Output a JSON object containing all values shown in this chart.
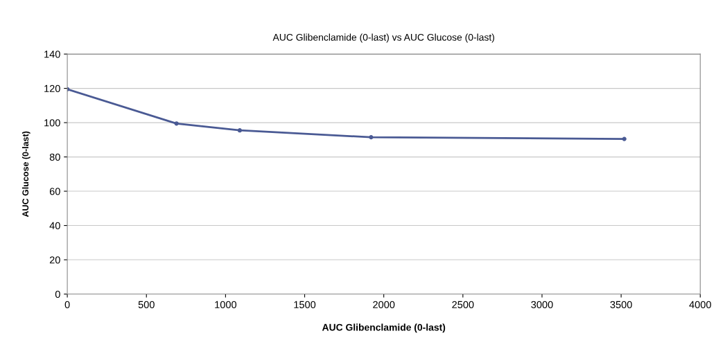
{
  "chart_data": {
    "type": "line",
    "title": "AUC Glibenclamide (0-last) vs AUC Glucose (0-last)",
    "xlabel": "AUC Glibenclamide (0-last)",
    "ylabel": "AUC Glucose (0-last)",
    "x": [
      0,
      690,
      1090,
      1920,
      3520
    ],
    "series": [
      {
        "color": "#4a5a94",
        "values": [
          119.5,
          99.5,
          95.5,
          91.5,
          90.5
        ]
      }
    ],
    "xlim": [
      0,
      4000
    ],
    "xticks": [
      0,
      500,
      1000,
      1500,
      2000,
      2500,
      3000,
      3500,
      4000
    ],
    "ylim": [
      0,
      140
    ],
    "yticks": [
      0,
      20,
      40,
      60,
      80,
      100,
      120,
      140
    ],
    "grid": "y",
    "marker": "circle",
    "line_style": "solid",
    "legend": false
  }
}
